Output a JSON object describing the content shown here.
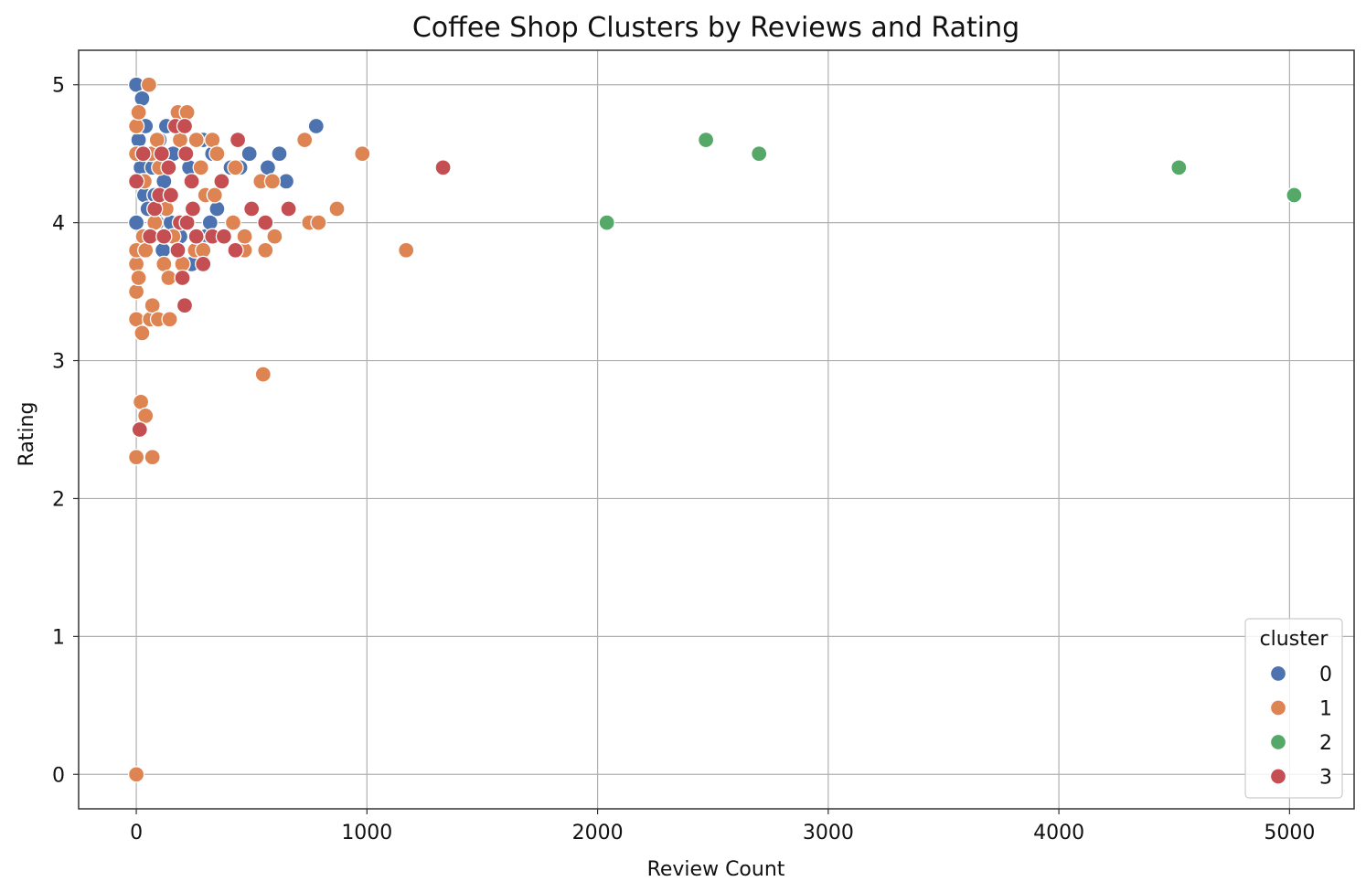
{
  "chart_data": {
    "type": "scatter",
    "title": "Coffee Shop Clusters by Reviews and Rating",
    "xlabel": "Review Count",
    "ylabel": "Rating",
    "xlim": [
      -250,
      5280
    ],
    "ylim": [
      -0.25,
      5.25
    ],
    "xticks": [
      0,
      1000,
      2000,
      3000,
      4000,
      5000
    ],
    "yticks": [
      0,
      1,
      2,
      3,
      4,
      5
    ],
    "grid": true,
    "legend": {
      "title": "cluster",
      "position": "lower-right"
    },
    "series": [
      {
        "name": "0",
        "color": "#4c72b0",
        "points": [
          [
            0,
            5.0
          ],
          [
            0,
            4.0
          ],
          [
            5,
            4.8
          ],
          [
            10,
            4.6
          ],
          [
            15,
            4.7
          ],
          [
            20,
            4.4
          ],
          [
            25,
            4.9
          ],
          [
            30,
            4.3
          ],
          [
            35,
            4.2
          ],
          [
            40,
            4.7
          ],
          [
            50,
            4.1
          ],
          [
            60,
            4.5
          ],
          [
            70,
            4.4
          ],
          [
            80,
            4.2
          ],
          [
            90,
            4.0
          ],
          [
            100,
            4.6
          ],
          [
            110,
            4.1
          ],
          [
            115,
            3.8
          ],
          [
            120,
            4.3
          ],
          [
            130,
            4.7
          ],
          [
            150,
            4.0
          ],
          [
            160,
            4.5
          ],
          [
            190,
            3.9
          ],
          [
            230,
            4.4
          ],
          [
            240,
            3.7
          ],
          [
            270,
            4.6
          ],
          [
            290,
            4.6
          ],
          [
            300,
            3.9
          ],
          [
            320,
            4.0
          ],
          [
            330,
            4.5
          ],
          [
            350,
            4.1
          ],
          [
            410,
            4.4
          ],
          [
            450,
            4.4
          ],
          [
            490,
            4.5
          ],
          [
            570,
            4.4
          ],
          [
            620,
            4.5
          ],
          [
            650,
            4.3
          ],
          [
            780,
            4.7
          ]
        ]
      },
      {
        "name": "1",
        "color": "#dd8452",
        "points": [
          [
            0,
            0.0
          ],
          [
            0,
            2.3
          ],
          [
            0,
            3.3
          ],
          [
            0,
            3.5
          ],
          [
            0,
            3.7
          ],
          [
            0,
            3.8
          ],
          [
            0,
            4.5
          ],
          [
            0,
            4.7
          ],
          [
            10,
            3.6
          ],
          [
            10,
            4.8
          ],
          [
            20,
            2.7
          ],
          [
            25,
            3.2
          ],
          [
            30,
            3.9
          ],
          [
            35,
            4.3
          ],
          [
            40,
            2.6
          ],
          [
            40,
            3.8
          ],
          [
            55,
            5.0
          ],
          [
            60,
            3.3
          ],
          [
            65,
            4.5
          ],
          [
            70,
            2.3
          ],
          [
            70,
            3.4
          ],
          [
            80,
            4.0
          ],
          [
            90,
            4.6
          ],
          [
            95,
            3.3
          ],
          [
            100,
            4.4
          ],
          [
            120,
            3.7
          ],
          [
            130,
            4.1
          ],
          [
            140,
            3.6
          ],
          [
            145,
            3.3
          ],
          [
            160,
            3.9
          ],
          [
            180,
            4.8
          ],
          [
            190,
            4.6
          ],
          [
            200,
            3.7
          ],
          [
            220,
            4.8
          ],
          [
            240,
            4.1
          ],
          [
            255,
            3.8
          ],
          [
            260,
            4.6
          ],
          [
            280,
            4.4
          ],
          [
            290,
            3.8
          ],
          [
            300,
            4.2
          ],
          [
            330,
            4.6
          ],
          [
            340,
            4.2
          ],
          [
            350,
            4.5
          ],
          [
            420,
            4.0
          ],
          [
            430,
            4.4
          ],
          [
            470,
            3.8
          ],
          [
            470,
            3.9
          ],
          [
            540,
            4.3
          ],
          [
            550,
            2.9
          ],
          [
            560,
            3.8
          ],
          [
            590,
            4.3
          ],
          [
            600,
            3.9
          ],
          [
            730,
            4.6
          ],
          [
            750,
            4.0
          ],
          [
            790,
            4.0
          ],
          [
            870,
            4.1
          ],
          [
            980,
            4.5
          ],
          [
            1170,
            3.8
          ]
        ]
      },
      {
        "name": "2",
        "color": "#55a868",
        "points": [
          [
            2040,
            4.0
          ],
          [
            2470,
            4.6
          ],
          [
            2700,
            4.5
          ],
          [
            4520,
            4.4
          ],
          [
            5020,
            4.2
          ]
        ]
      },
      {
        "name": "3",
        "color": "#c44e52",
        "points": [
          [
            0,
            4.3
          ],
          [
            15,
            2.5
          ],
          [
            30,
            4.5
          ],
          [
            60,
            3.9
          ],
          [
            80,
            4.1
          ],
          [
            100,
            4.2
          ],
          [
            110,
            4.5
          ],
          [
            120,
            3.9
          ],
          [
            140,
            4.4
          ],
          [
            150,
            4.2
          ],
          [
            170,
            4.7
          ],
          [
            180,
            3.8
          ],
          [
            190,
            4.0
          ],
          [
            200,
            3.6
          ],
          [
            210,
            3.4
          ],
          [
            210,
            4.7
          ],
          [
            215,
            4.5
          ],
          [
            220,
            4.0
          ],
          [
            240,
            4.3
          ],
          [
            245,
            4.1
          ],
          [
            260,
            3.9
          ],
          [
            290,
            3.7
          ],
          [
            330,
            3.9
          ],
          [
            370,
            4.3
          ],
          [
            380,
            3.9
          ],
          [
            430,
            3.8
          ],
          [
            440,
            4.6
          ],
          [
            500,
            4.1
          ],
          [
            560,
            4.0
          ],
          [
            660,
            4.1
          ],
          [
            1330,
            4.4
          ]
        ]
      }
    ]
  }
}
